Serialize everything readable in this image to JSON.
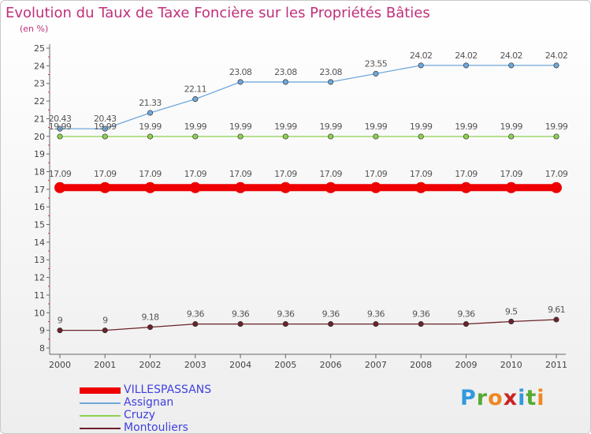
{
  "chart_data": {
    "type": "line",
    "title": "Evolution du Taux de Taxe Foncière sur les Propriétés Bâties",
    "subtitle": "(en %)",
    "xlabel": "",
    "ylabel": "(en %)",
    "ylim": [
      8,
      25
    ],
    "yticks": [
      "8",
      "9",
      "10",
      "11",
      "12",
      "13",
      "14",
      "15",
      "16",
      "17",
      "18",
      "19",
      "20",
      "21",
      "22",
      "23",
      "24",
      "25"
    ],
    "categories": [
      "2000",
      "2001",
      "2002",
      "2003",
      "2004",
      "2005",
      "2006",
      "2007",
      "2008",
      "2009",
      "2010",
      "2011"
    ],
    "grid": false,
    "legend_position": "bottom-left",
    "series": [
      {
        "name": "VILLESPASSANS",
        "color": "#ee0000",
        "values": [
          17.09,
          17.09,
          17.09,
          17.09,
          17.09,
          17.09,
          17.09,
          17.09,
          17.09,
          17.09,
          17.09,
          17.09
        ],
        "labels": [
          "17.09",
          "17.09",
          "17.09",
          "17.09",
          "17.09",
          "17.09",
          "17.09",
          "17.09",
          "17.09",
          "17.09",
          "17.09",
          "17.09"
        ]
      },
      {
        "name": "Assignan",
        "color": "#6fa8dc",
        "values": [
          20.43,
          20.43,
          21.33,
          22.11,
          23.08,
          23.08,
          23.08,
          23.55,
          24.02,
          24.02,
          24.02,
          24.02
        ],
        "labels": [
          "20.43",
          "20.43",
          "21.33",
          "22.11",
          "23.08",
          "23.08",
          "23.08",
          "23.55",
          "24.02",
          "24.02",
          "24.02",
          "24.02"
        ]
      },
      {
        "name": "Cruzy",
        "color": "#8ed152",
        "values": [
          19.99,
          19.99,
          19.99,
          19.99,
          19.99,
          19.99,
          19.99,
          19.99,
          19.99,
          19.99,
          19.99,
          19.99
        ],
        "labels": [
          "19.99",
          "19.99",
          "19.99",
          "19.99",
          "19.99",
          "19.99",
          "19.99",
          "19.99",
          "19.99",
          "19.99",
          "19.99",
          "19.99"
        ]
      },
      {
        "name": "Montouliers",
        "color": "#6b2228",
        "values": [
          9,
          9,
          9.18,
          9.36,
          9.36,
          9.36,
          9.36,
          9.36,
          9.36,
          9.36,
          9.5,
          9.61
        ],
        "labels": [
          "9",
          "9",
          "9.18",
          "9.36",
          "9.36",
          "9.36",
          "9.36",
          "9.36",
          "9.36",
          "9.36",
          "9.5",
          "9.61"
        ]
      }
    ]
  },
  "logo": {
    "letters": [
      {
        "ch": "P",
        "color": "#3399dd"
      },
      {
        "ch": "r",
        "color": "#55aa33"
      },
      {
        "ch": "o",
        "color": "#ee8822"
      },
      {
        "ch": "x",
        "color": "#cc2222"
      },
      {
        "ch": "i",
        "color": "#3399dd"
      },
      {
        "ch": "t",
        "color": "#55aa33"
      },
      {
        "ch": "i",
        "color": "#ee8822"
      }
    ]
  }
}
